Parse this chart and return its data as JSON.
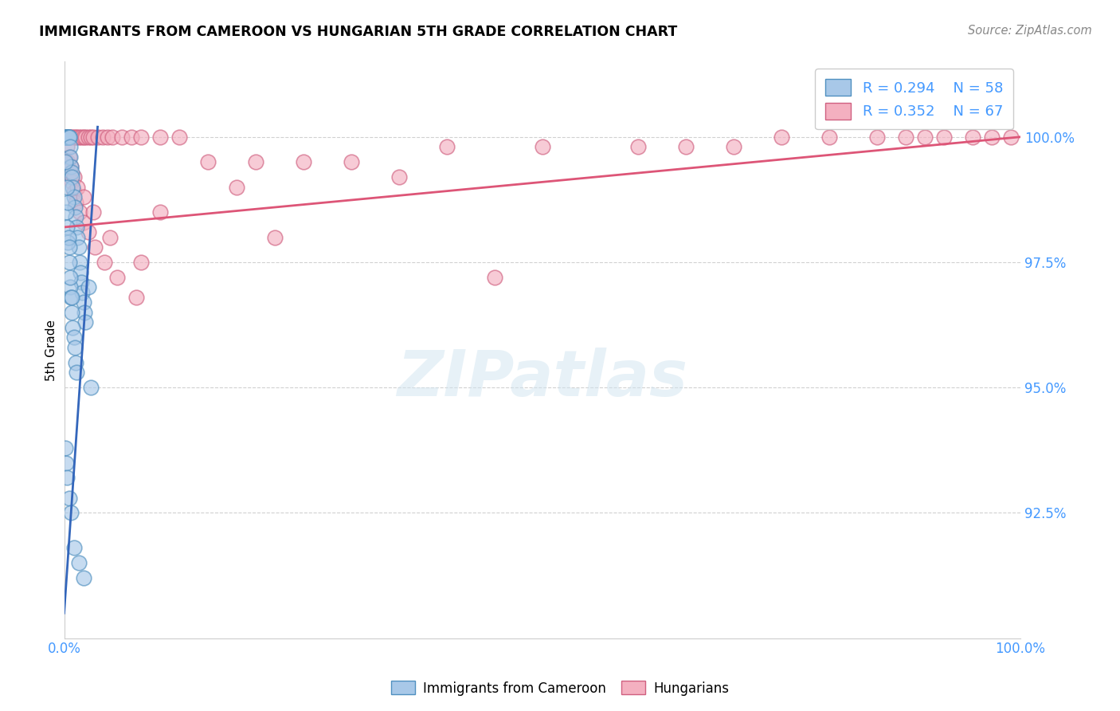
{
  "title": "IMMIGRANTS FROM CAMEROON VS HUNGARIAN 5TH GRADE CORRELATION CHART",
  "source": "Source: ZipAtlas.com",
  "ylabel": "5th Grade",
  "xlim": [
    0.0,
    100.0
  ],
  "ylim": [
    90.0,
    101.5
  ],
  "yticks": [
    92.5,
    95.0,
    97.5,
    100.0
  ],
  "ytick_labels": [
    "92.5%",
    "95.0%",
    "97.5%",
    "100.0%"
  ],
  "xticks": [
    0.0,
    25.0,
    50.0,
    75.0,
    100.0
  ],
  "xtick_labels": [
    "0.0%",
    "",
    "",
    "",
    "100.0%"
  ],
  "legend_r1": "R = 0.294",
  "legend_n1": "N = 58",
  "legend_r2": "R = 0.352",
  "legend_n2": "N = 67",
  "blue_color": "#a8c8e8",
  "pink_color": "#f4b0c0",
  "blue_edge_color": "#5090c0",
  "pink_edge_color": "#d06080",
  "blue_line_color": "#3366bb",
  "pink_line_color": "#dd5577",
  "watermark_text": "ZIPatlas",
  "blue_x": [
    0.1,
    0.15,
    0.2,
    0.25,
    0.3,
    0.35,
    0.4,
    0.45,
    0.5,
    0.55,
    0.6,
    0.65,
    0.7,
    0.75,
    0.8,
    0.9,
    1.0,
    1.1,
    1.2,
    1.3,
    1.4,
    1.5,
    1.6,
    1.7,
    1.8,
    1.9,
    2.0,
    2.1,
    2.2,
    2.5,
    0.2,
    0.3,
    0.4,
    0.5,
    0.6,
    0.7,
    0.8,
    0.9,
    1.0,
    1.1,
    1.2,
    1.3,
    0.15,
    0.25,
    0.35,
    0.45,
    0.55,
    0.65,
    0.75,
    2.8,
    0.1,
    0.2,
    0.3,
    0.5,
    0.7,
    1.0,
    1.5,
    2.0
  ],
  "blue_y": [
    100.0,
    100.0,
    100.0,
    100.0,
    100.0,
    100.0,
    100.0,
    100.0,
    100.0,
    100.0,
    99.8,
    99.6,
    99.4,
    99.3,
    99.2,
    99.0,
    98.8,
    98.6,
    98.4,
    98.2,
    98.0,
    97.8,
    97.5,
    97.3,
    97.1,
    96.9,
    96.7,
    96.5,
    96.3,
    97.0,
    98.5,
    98.2,
    97.9,
    97.5,
    97.0,
    96.8,
    96.5,
    96.2,
    96.0,
    95.8,
    95.5,
    95.3,
    99.5,
    99.0,
    98.7,
    98.0,
    97.8,
    97.2,
    96.8,
    95.0,
    93.8,
    93.5,
    93.2,
    92.8,
    92.5,
    91.8,
    91.5,
    91.2
  ],
  "pink_x": [
    0.2,
    0.3,
    0.5,
    0.7,
    0.9,
    1.1,
    1.3,
    1.5,
    1.8,
    2.0,
    2.2,
    2.5,
    2.8,
    3.0,
    3.5,
    4.0,
    4.5,
    5.0,
    6.0,
    7.0,
    8.0,
    10.0,
    12.0,
    0.4,
    0.6,
    0.8,
    1.0,
    1.2,
    1.6,
    2.0,
    2.5,
    3.2,
    4.2,
    5.5,
    7.5,
    0.3,
    0.5,
    0.7,
    1.0,
    1.4,
    2.0,
    3.0,
    4.8,
    8.0,
    15.0,
    20.0,
    25.0,
    30.0,
    40.0,
    50.0,
    60.0,
    65.0,
    70.0,
    75.0,
    80.0,
    85.0,
    88.0,
    90.0,
    92.0,
    95.0,
    97.0,
    99.0,
    10.0,
    18.0,
    22.0,
    35.0,
    45.0
  ],
  "pink_y": [
    100.0,
    100.0,
    100.0,
    100.0,
    100.0,
    100.0,
    100.0,
    100.0,
    100.0,
    100.0,
    100.0,
    100.0,
    100.0,
    100.0,
    100.0,
    100.0,
    100.0,
    100.0,
    100.0,
    100.0,
    100.0,
    100.0,
    100.0,
    99.5,
    99.3,
    99.1,
    98.9,
    98.7,
    98.5,
    98.3,
    98.1,
    97.8,
    97.5,
    97.2,
    96.8,
    99.8,
    99.6,
    99.4,
    99.2,
    99.0,
    98.8,
    98.5,
    98.0,
    97.5,
    99.5,
    99.5,
    99.5,
    99.5,
    99.8,
    99.8,
    99.8,
    99.8,
    99.8,
    100.0,
    100.0,
    100.0,
    100.0,
    100.0,
    100.0,
    100.0,
    100.0,
    100.0,
    98.5,
    99.0,
    98.0,
    99.2,
    97.2
  ],
  "blue_trend_x": [
    0.0,
    3.5
  ],
  "blue_trend_y": [
    90.5,
    100.2
  ],
  "pink_trend_x": [
    0.0,
    100.0
  ],
  "pink_trend_y": [
    98.2,
    100.0
  ]
}
